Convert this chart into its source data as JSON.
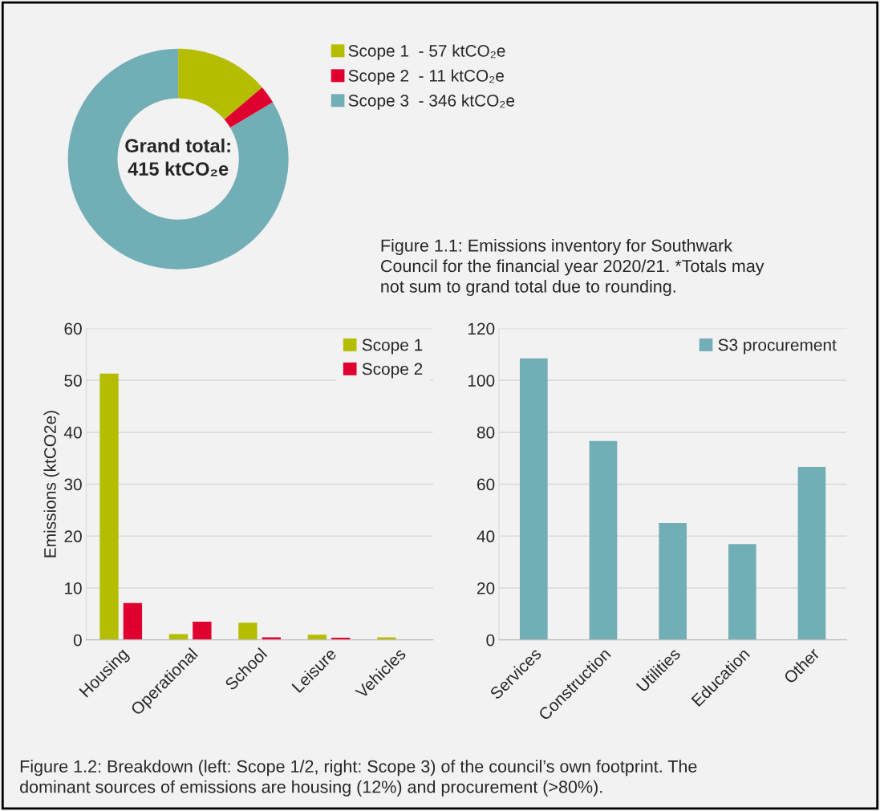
{
  "chart_data": [
    {
      "type": "donut",
      "categories": [
        "Scope 1  -",
        "Scope 2  -",
        "Scope 3  -"
      ],
      "values": [
        57,
        11,
        346
      ],
      "value_labels": [
        "57 ktCO₂e",
        "11 ktCO₂e",
        "346 ktCO₂e"
      ],
      "colors": [
        "#b5bd00",
        "#e0002f",
        "#72aeb6"
      ],
      "legend": "right",
      "annotations": [
        "Grand total:\n415 ktCO₂e",
        "Figure 1.1: Emissions inventory for Southwark\nCouncil for the financial year 2020/21. *Totals may\nnot sum to grand total due to rounding."
      ]
    },
    {
      "type": "bar",
      "categories": [
        "Housing",
        "Operational",
        "School",
        "Leisure",
        "Vehicles"
      ],
      "ylabel": "Emissions (ktCO2e)",
      "ylim": [
        0,
        60
      ],
      "yticks": [
        0,
        10,
        20,
        30,
        40,
        50,
        60
      ],
      "grid": "y",
      "legend": "top right",
      "series": [
        {
          "name": "Scope 1",
          "color": "#b5bd00",
          "values": [
            51.3,
            1.1,
            3.3,
            1.0,
            0.5
          ]
        },
        {
          "name": "Scope 2",
          "color": "#e0002f",
          "values": [
            7.1,
            3.5,
            0.5,
            0.4,
            null
          ]
        }
      ]
    },
    {
      "type": "bar",
      "categories": [
        "Services",
        "Construction",
        "Utilities",
        "Education",
        "Other"
      ],
      "ylim": [
        0,
        120
      ],
      "yticks": [
        0,
        20,
        40,
        60,
        80,
        100,
        120
      ],
      "grid": "y",
      "legend": "top right",
      "series": [
        {
          "name": "S3 procurement",
          "color": "#72aeb6",
          "values": [
            108.5,
            76.6,
            45.0,
            36.9,
            66.7
          ]
        }
      ],
      "annotations": [
        "Figure 1.2: Breakdown (left: Scope 1/2, right: Scope 3) of the council’s own footprint. The\ndominant sources of emissions are housing (12%) and procurement (>80%)."
      ]
    }
  ]
}
